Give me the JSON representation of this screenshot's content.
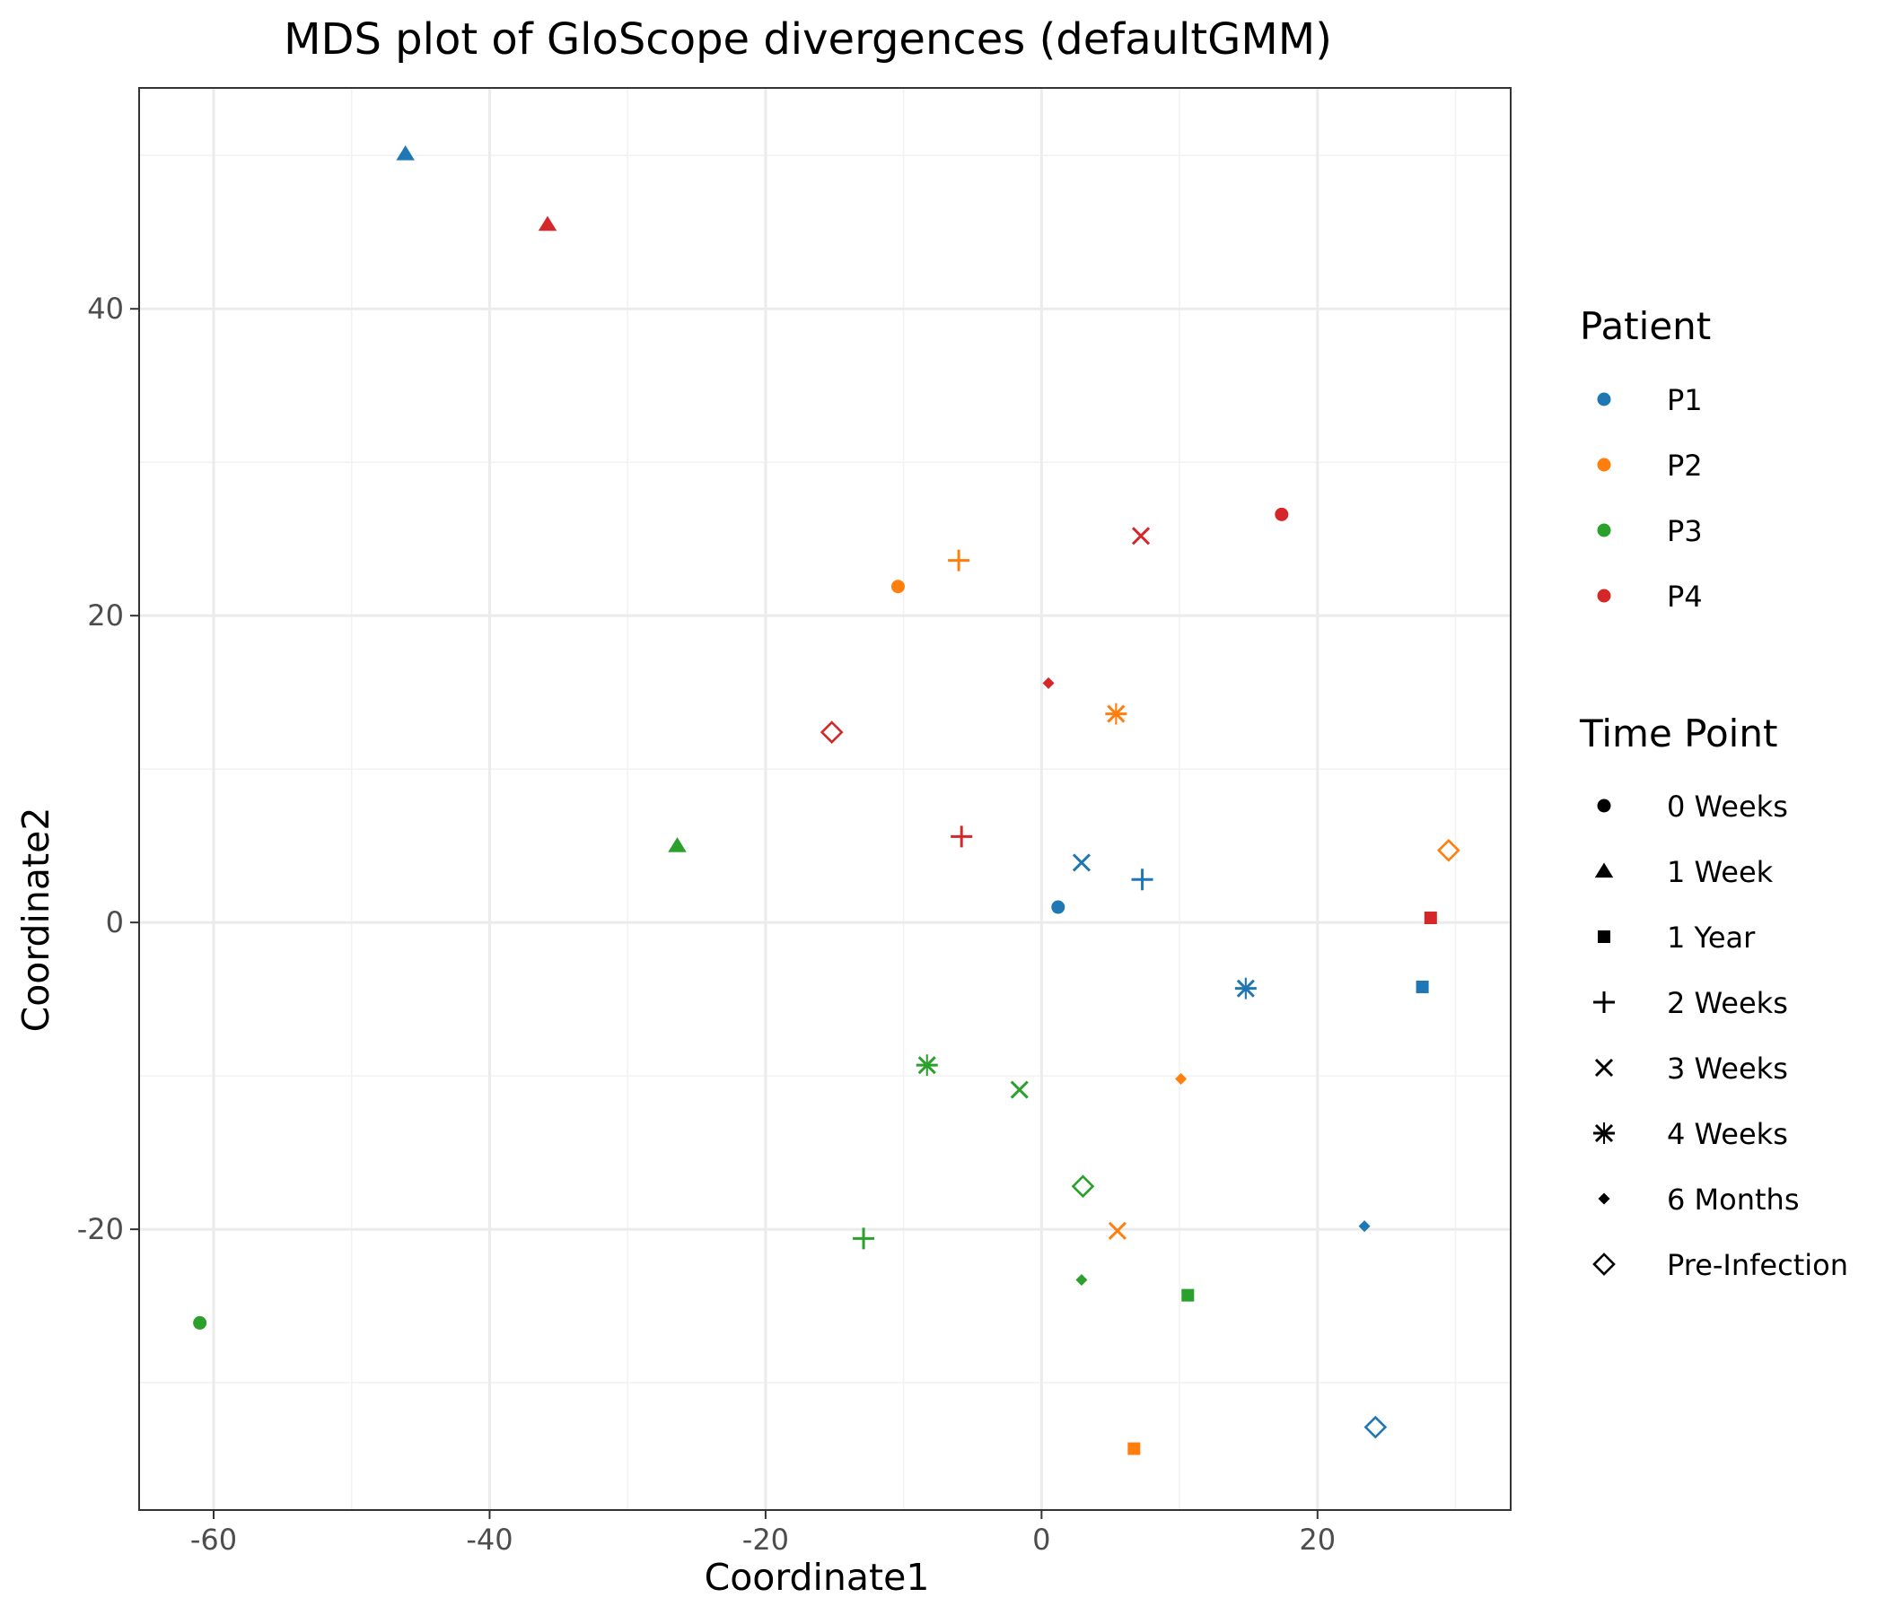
{
  "chart_data": {
    "type": "scatter",
    "title": "MDS plot of GloScope divergences (defaultGMM)",
    "xlabel": "Coordinate1",
    "ylabel": "Coordinate2",
    "xlim": [
      -65.4,
      34.0
    ],
    "ylim": [
      -38.3,
      54.4
    ],
    "x_ticks": [
      -60,
      -40,
      -20,
      0,
      20
    ],
    "y_ticks": [
      -20,
      0,
      20,
      40
    ],
    "x_tick_labels": [
      "-60",
      "-40",
      "-20",
      "0",
      "20"
    ],
    "y_tick_labels": [
      "-20",
      "0",
      "20",
      "40"
    ],
    "x_minor": [
      -50,
      -30,
      -10,
      10,
      30
    ],
    "y_minor": [
      -30,
      -10,
      10,
      30,
      50
    ],
    "grid": true,
    "legend_placement": "right",
    "patient_legend": {
      "title": "Patient",
      "entries": [
        {
          "label": "P1",
          "color": "#1f77b4"
        },
        {
          "label": "P2",
          "color": "#ff7f0e"
        },
        {
          "label": "P3",
          "color": "#2ca02c"
        },
        {
          "label": "P4",
          "color": "#d62728"
        }
      ]
    },
    "timepoint_legend": {
      "title": "Time Point",
      "entries": [
        {
          "label": "0 Weeks",
          "shape": "circle"
        },
        {
          "label": "1 Week",
          "shape": "triangle"
        },
        {
          "label": "1 Year",
          "shape": "square"
        },
        {
          "label": "2 Weeks",
          "shape": "plus"
        },
        {
          "label": "3 Weeks",
          "shape": "cross"
        },
        {
          "label": "4 Weeks",
          "shape": "asterisk"
        },
        {
          "label": "6 Months",
          "shape": "diamond"
        },
        {
          "label": "Pre-Infection",
          "shape": "open-diamond"
        }
      ]
    },
    "points": [
      {
        "patient": "P1",
        "time": "0 Weeks",
        "x": 1.2,
        "y": 1.0
      },
      {
        "patient": "P1",
        "time": "1 Week",
        "x": -46.1,
        "y": 50.1
      },
      {
        "patient": "P1",
        "time": "1 Year",
        "x": 27.6,
        "y": -4.2
      },
      {
        "patient": "P1",
        "time": "2 Weeks",
        "x": 7.3,
        "y": 2.8
      },
      {
        "patient": "P1",
        "time": "3 Weeks",
        "x": 2.9,
        "y": 3.9
      },
      {
        "patient": "P1",
        "time": "4 Weeks",
        "x": 14.8,
        "y": -4.3
      },
      {
        "patient": "P1",
        "time": "6 Months",
        "x": 23.4,
        "y": -19.8
      },
      {
        "patient": "P1",
        "time": "Pre-Infection",
        "x": 24.2,
        "y": -32.9
      },
      {
        "patient": "P2",
        "time": "0 Weeks",
        "x": -10.4,
        "y": 21.9
      },
      {
        "patient": "P2",
        "time": "1 Year",
        "x": 6.7,
        "y": -34.3
      },
      {
        "patient": "P2",
        "time": "2 Weeks",
        "x": -6.0,
        "y": 23.6
      },
      {
        "patient": "P2",
        "time": "3 Weeks",
        "x": 5.5,
        "y": -20.1
      },
      {
        "patient": "P2",
        "time": "4 Weeks",
        "x": 5.4,
        "y": 13.6
      },
      {
        "patient": "P2",
        "time": "6 Months",
        "x": 10.1,
        "y": -10.2
      },
      {
        "patient": "P2",
        "time": "Pre-Infection",
        "x": 29.5,
        "y": 4.7
      },
      {
        "patient": "P3",
        "time": "0 Weeks",
        "x": -61.0,
        "y": -26.1
      },
      {
        "patient": "P3",
        "time": "1 Week",
        "x": -26.4,
        "y": 5.0
      },
      {
        "patient": "P3",
        "time": "1 Year",
        "x": 10.6,
        "y": -24.3
      },
      {
        "patient": "P3",
        "time": "2 Weeks",
        "x": -12.9,
        "y": -20.6
      },
      {
        "patient": "P3",
        "time": "3 Weeks",
        "x": -1.6,
        "y": -10.9
      },
      {
        "patient": "P3",
        "time": "4 Weeks",
        "x": -8.3,
        "y": -9.3
      },
      {
        "patient": "P3",
        "time": "6 Months",
        "x": 2.9,
        "y": -23.3
      },
      {
        "patient": "P3",
        "time": "Pre-Infection",
        "x": 3.0,
        "y": -17.2
      },
      {
        "patient": "P4",
        "time": "0 Weeks",
        "x": 17.4,
        "y": 26.6
      },
      {
        "patient": "P4",
        "time": "1 Week",
        "x": -35.8,
        "y": 45.5
      },
      {
        "patient": "P4",
        "time": "1 Year",
        "x": 28.2,
        "y": 0.3
      },
      {
        "patient": "P4",
        "time": "2 Weeks",
        "x": -5.8,
        "y": 5.6
      },
      {
        "patient": "P4",
        "time": "3 Weeks",
        "x": 7.2,
        "y": 25.2
      },
      {
        "patient": "P4",
        "time": "6 Months",
        "x": 0.5,
        "y": 15.6
      },
      {
        "patient": "P4",
        "time": "Pre-Infection",
        "x": -15.2,
        "y": 12.4
      }
    ]
  }
}
